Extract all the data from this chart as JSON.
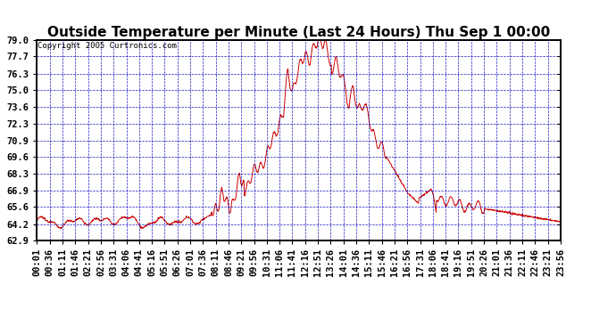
{
  "title": "Outside Temperature per Minute (Last 24 Hours) Thu Sep 1 00:00",
  "copyright": "Copyright 2005 Curtronics.com",
  "ylabel_ticks": [
    62.9,
    64.2,
    65.6,
    66.9,
    68.3,
    69.6,
    70.9,
    72.3,
    73.6,
    75.0,
    76.3,
    77.7,
    79.0
  ],
  "ymin": 62.9,
  "ymax": 79.0,
  "line_color": "#cc0000",
  "grid_color": "#0000bb",
  "background_color": "#ffffff",
  "title_fontsize": 11,
  "copyright_fontsize": 6.5,
  "tick_fontsize": 7.5,
  "xtick_labels": [
    "00:01",
    "00:36",
    "01:11",
    "01:46",
    "02:21",
    "02:56",
    "03:31",
    "04:06",
    "04:41",
    "05:16",
    "05:51",
    "06:26",
    "07:01",
    "07:36",
    "08:11",
    "08:46",
    "09:21",
    "09:56",
    "10:31",
    "11:06",
    "11:41",
    "12:16",
    "12:51",
    "13:26",
    "14:01",
    "14:36",
    "15:11",
    "15:46",
    "16:21",
    "16:56",
    "17:31",
    "18:06",
    "18:41",
    "19:16",
    "19:51",
    "20:26",
    "21:01",
    "21:36",
    "22:11",
    "22:46",
    "23:21",
    "23:56"
  ],
  "num_minutes": 1440
}
